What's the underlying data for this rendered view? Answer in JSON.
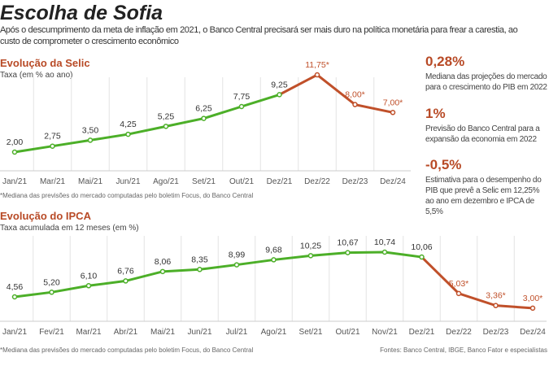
{
  "title": "Escolha de Sofia",
  "subtitle_line1": "Após o descumprimento da meta de inflação em 2021, o Banco Central precisará ser mais duro na política monetária para frear a carestia, ao",
  "subtitle_line2": "custo de comprometer o crescimento econômico",
  "chart_data": [
    {
      "type": "line",
      "title": "Evolução da Selic",
      "ylabel": "Taxa (em % ao ano)",
      "categories": [
        "Jan/21",
        "Mar/21",
        "Mai/21",
        "Jun/21",
        "Ago/21",
        "Set/21",
        "Out/21",
        "Dez/21",
        "Dez/22",
        "Dez/23",
        "Dez/24"
      ],
      "values": [
        2.0,
        2.75,
        3.5,
        4.25,
        5.25,
        6.25,
        7.75,
        9.25,
        11.75,
        8.0,
        7.0
      ],
      "labels": [
        "2,00",
        "2,75",
        "3,50",
        "4,25",
        "5,25",
        "6,25",
        "7,75",
        "9,25",
        "11,75*",
        "8,00*",
        "7,00*"
      ],
      "projection_from_index": 7,
      "note": "*Mediana das previsões do mercado computadas pelo boletim Focus, do Banco Central"
    },
    {
      "type": "line",
      "title": "Evolução do IPCA",
      "ylabel": "Taxa acumulada em 12 meses (em %)",
      "categories": [
        "Jan/21",
        "Fev/21",
        "Mar/21",
        "Abr/21",
        "Mai/21",
        "Jun/21",
        "Jul/21",
        "Ago/21",
        "Set/21",
        "Out/21",
        "Nov/21",
        "Dez/21",
        "Dez/22",
        "Dez/23",
        "Dez/24"
      ],
      "values": [
        4.56,
        5.2,
        6.1,
        6.76,
        8.06,
        8.35,
        8.99,
        9.68,
        10.25,
        10.67,
        10.74,
        10.06,
        5.03,
        3.36,
        3.0
      ],
      "labels": [
        "4,56",
        "5,20",
        "6,10",
        "6,76",
        "8,06",
        "8,35",
        "8,99",
        "9,68",
        "10,25",
        "10,67",
        "10,74",
        "10,06",
        "5,03*",
        "3,36*",
        "3,00*"
      ],
      "projection_from_index": 11,
      "note": "*Mediana das previsões do mercado computadas pelo boletim Focus, do Banco Central",
      "source": "Fontes: Banco Central, IBGE, Banco Fator e especialistas"
    }
  ],
  "facts": [
    {
      "value": "0,28%",
      "text": "Mediana das projeções do mercado para o crescimento do PIB em 2022"
    },
    {
      "value": "1%",
      "text": "Previsão do Banco Central para a expansão da economia em 2022"
    },
    {
      "value": "-0,5%",
      "text": "Estimativa para o desempenho do PIB que prevê a Selic em 12,25% ao ano em dezembro e IPCA de 5,5%"
    }
  ],
  "colors": {
    "actual": "#4caf28",
    "projection": "#c0502a"
  }
}
